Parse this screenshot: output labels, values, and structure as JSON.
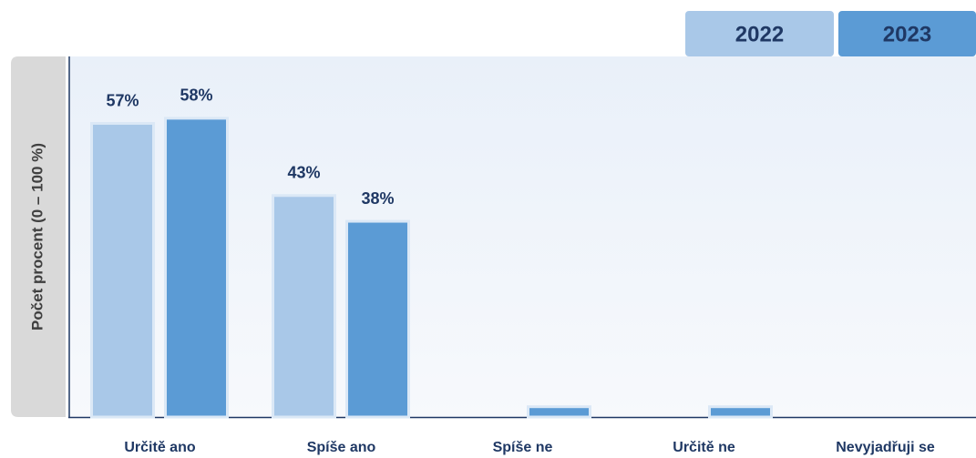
{
  "chart_data": {
    "type": "bar",
    "y_label": "Počet procent  (0 – 100 %)",
    "categories": [
      "Určitě ano",
      "Spíše ano",
      "Spíše ne",
      "Určitě ne",
      "Nevyjadřuji se"
    ],
    "series": [
      {
        "name": "2022",
        "color": "#a9c8e8",
        "values": [
          57,
          43,
          0,
          0,
          0
        ],
        "value_labels": [
          "57%",
          "43%",
          null,
          null,
          null
        ]
      },
      {
        "name": "2023",
        "color": "#5b9bd5",
        "values": [
          58,
          38,
          2,
          2,
          0
        ],
        "value_labels": [
          "58%",
          "38%",
          null,
          null,
          null
        ]
      }
    ],
    "ylim": [
      0,
      70
    ]
  }
}
